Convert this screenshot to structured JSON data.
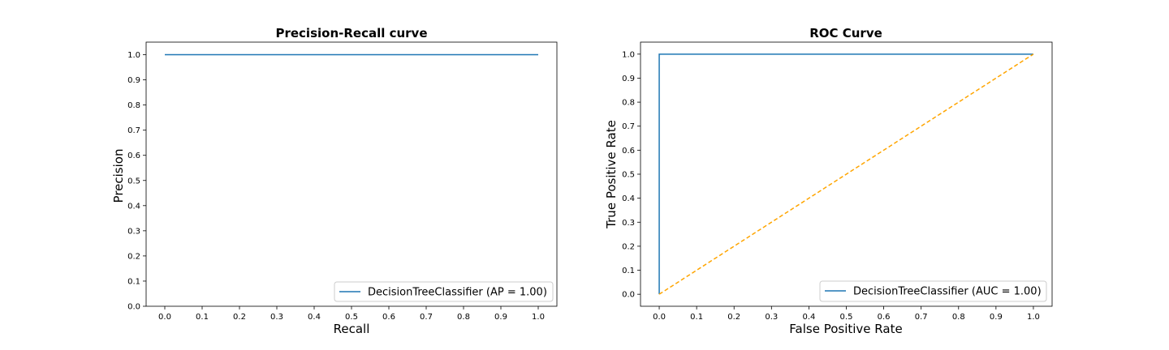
{
  "chart_data": [
    {
      "type": "line",
      "title": "Precision-Recall curve",
      "xlabel": "Recall",
      "ylabel": "Precision",
      "xlim": [
        -0.05,
        1.05
      ],
      "ylim": [
        0.0,
        1.05
      ],
      "xticks": [
        "0.0",
        "0.1",
        "0.2",
        "0.3",
        "0.4",
        "0.5",
        "0.6",
        "0.7",
        "0.8",
        "0.9",
        "1.0"
      ],
      "yticks": [
        "0.0",
        "0.1",
        "0.2",
        "0.3",
        "0.4",
        "0.5",
        "0.6",
        "0.7",
        "0.8",
        "0.9",
        "1.0"
      ],
      "grid": false,
      "legend_position": "lower-right",
      "series": [
        {
          "name": "DecisionTreeClassifier (AP = 1.00)",
          "color": "#1f77b4",
          "dash": "solid",
          "x": [
            0.0,
            1.0
          ],
          "y": [
            1.0,
            1.0
          ]
        }
      ]
    },
    {
      "type": "line",
      "title": "ROC Curve",
      "xlabel": "False Positive Rate",
      "ylabel": "True Positive Rate",
      "xlim": [
        -0.05,
        1.05
      ],
      "ylim": [
        -0.05,
        1.05
      ],
      "xticks": [
        "0.0",
        "0.1",
        "0.2",
        "0.3",
        "0.4",
        "0.5",
        "0.6",
        "0.7",
        "0.8",
        "0.9",
        "1.0"
      ],
      "yticks": [
        "0.0",
        "0.1",
        "0.2",
        "0.3",
        "0.4",
        "0.5",
        "0.6",
        "0.7",
        "0.8",
        "0.9",
        "1.0"
      ],
      "grid": false,
      "legend_position": "lower-right",
      "series": [
        {
          "name": "DecisionTreeClassifier (AUC = 1.00)",
          "color": "#1f77b4",
          "dash": "solid",
          "x": [
            0.0,
            0.0,
            1.0
          ],
          "y": [
            0.0,
            1.0,
            1.0
          ]
        },
        {
          "name": "",
          "color": "#ffa500",
          "dash": "dashed",
          "x": [
            0.0,
            1.0
          ],
          "y": [
            0.0,
            1.0
          ]
        }
      ]
    }
  ]
}
